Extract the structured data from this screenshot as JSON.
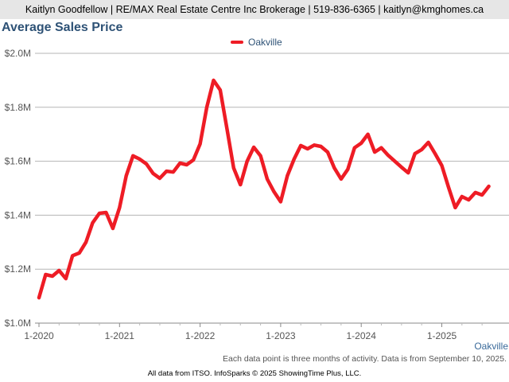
{
  "header": {
    "contact": "Kaitlyn Goodfellow | RE/MAX Real Estate Centre Inc Brokerage | 519-836-6365 | kaitlyn@kmghomes.ca"
  },
  "chart_data": {
    "type": "line",
    "title": "Average Sales Price",
    "xlabel": "",
    "ylabel": "",
    "ylim": [
      1.0,
      2.0
    ],
    "y_unit": "$M",
    "yticks": [
      "$1.0M",
      "$1.2M",
      "$1.4M",
      "$1.6M",
      "$1.8M",
      "$2.0M"
    ],
    "xticks": [
      "1-2020",
      "1-2021",
      "1-2022",
      "1-2023",
      "1-2024",
      "1-2025"
    ],
    "grid": true,
    "legend_position": "top-center",
    "x_start": "1-2020",
    "x_interval": "monthly",
    "series": [
      {
        "name": "Oakville",
        "color": "#ee1c25",
        "values": [
          1.094,
          1.18,
          1.174,
          1.195,
          1.165,
          1.25,
          1.26,
          1.3,
          1.372,
          1.407,
          1.41,
          1.351,
          1.428,
          1.546,
          1.62,
          1.608,
          1.59,
          1.555,
          1.537,
          1.563,
          1.56,
          1.593,
          1.587,
          1.605,
          1.664,
          1.8,
          1.9,
          1.864,
          1.72,
          1.575,
          1.513,
          1.6,
          1.652,
          1.62,
          1.534,
          1.487,
          1.45,
          1.546,
          1.608,
          1.658,
          1.646,
          1.66,
          1.655,
          1.634,
          1.575,
          1.534,
          1.57,
          1.65,
          1.667,
          1.7,
          1.634,
          1.65,
          1.622,
          1.6,
          1.578,
          1.557,
          1.628,
          1.643,
          1.67,
          1.628,
          1.584,
          1.504,
          1.428,
          1.469,
          1.457,
          1.484,
          1.475,
          1.507
        ]
      }
    ],
    "series_label": "Oakville",
    "annotation": "Each data point is three months of activity. Data is from September 10, 2025."
  },
  "footer": "All data from ITSO. InfoSparks © 2025 ShowingTime Plus, LLC."
}
